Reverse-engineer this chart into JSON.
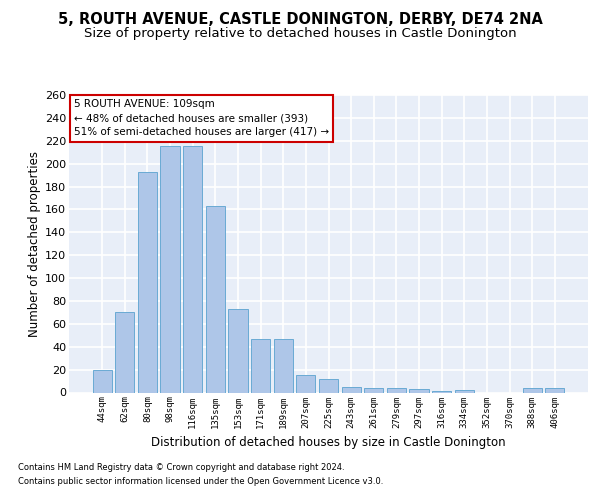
{
  "title1": "5, ROUTH AVENUE, CASTLE DONINGTON, DERBY, DE74 2NA",
  "title2": "Size of property relative to detached houses in Castle Donington",
  "xlabel": "Distribution of detached houses by size in Castle Donington",
  "ylabel": "Number of detached properties",
  "categories": [
    "44sqm",
    "62sqm",
    "80sqm",
    "98sqm",
    "116sqm",
    "135sqm",
    "153sqm",
    "171sqm",
    "189sqm",
    "207sqm",
    "225sqm",
    "243sqm",
    "261sqm",
    "279sqm",
    "297sqm",
    "316sqm",
    "334sqm",
    "352sqm",
    "370sqm",
    "388sqm",
    "406sqm"
  ],
  "values": [
    20,
    70,
    193,
    215,
    215,
    163,
    73,
    47,
    47,
    15,
    12,
    5,
    4,
    4,
    3,
    1,
    2,
    0,
    0,
    4,
    4
  ],
  "bar_color": "#aec6e8",
  "bar_edge_color": "#6aaad4",
  "annotation_text": "5 ROUTH AVENUE: 109sqm\n← 48% of detached houses are smaller (393)\n51% of semi-detached houses are larger (417) →",
  "annotation_box_color": "#ffffff",
  "annotation_box_edge_color": "#cc0000",
  "ylim": [
    0,
    260
  ],
  "yticks": [
    0,
    20,
    40,
    60,
    80,
    100,
    120,
    140,
    160,
    180,
    200,
    220,
    240,
    260
  ],
  "background_color": "#e8eef8",
  "grid_color": "#ffffff",
  "footer1": "Contains HM Land Registry data © Crown copyright and database right 2024.",
  "footer2": "Contains public sector information licensed under the Open Government Licence v3.0.",
  "title1_fontsize": 10.5,
  "title2_fontsize": 9.5,
  "xlabel_fontsize": 8.5,
  "ylabel_fontsize": 8.5
}
